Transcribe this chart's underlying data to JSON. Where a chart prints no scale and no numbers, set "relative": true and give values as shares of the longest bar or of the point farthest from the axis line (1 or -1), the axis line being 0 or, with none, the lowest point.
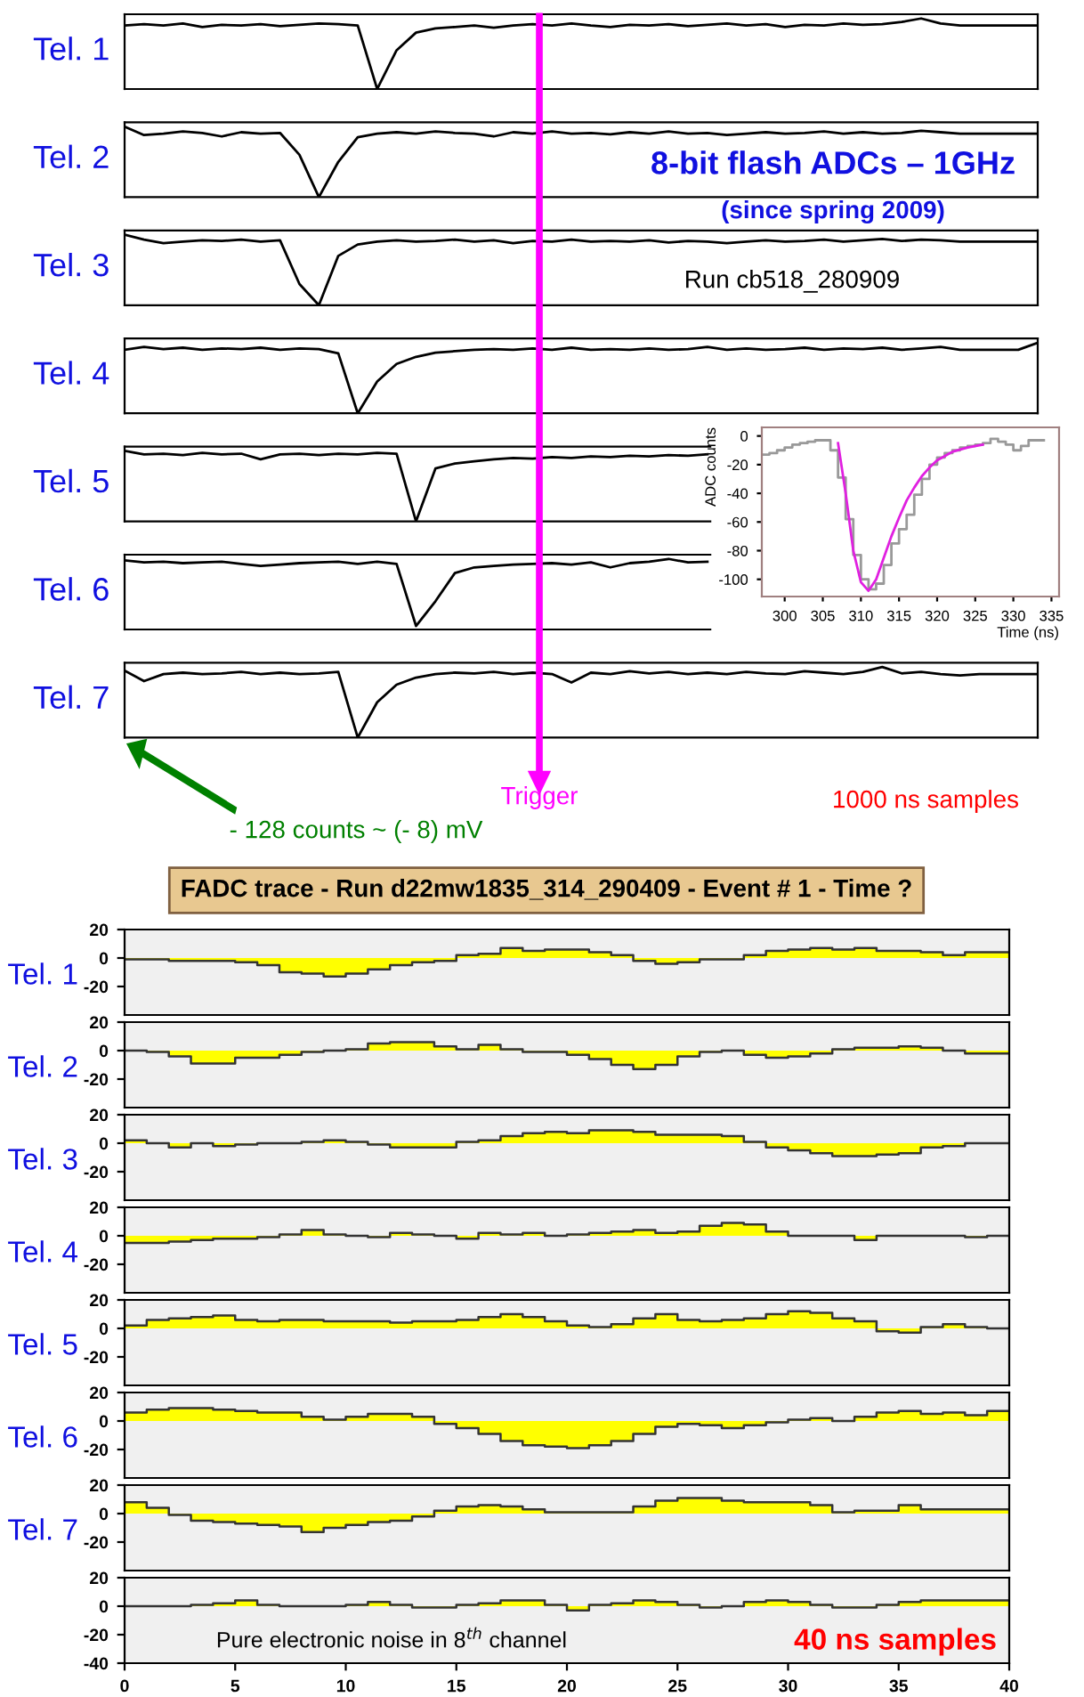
{
  "chart_data": [
    {
      "type": "line",
      "ylabel": "Tel. 1",
      "relative": true,
      "tick_labels": false,
      "annotations": [
        "8-bit flash ADCs – 1GHz",
        "(since spring 2009)"
      ],
      "categories": [
        null,
        null,
        null,
        null,
        null,
        null,
        null,
        null,
        null,
        null,
        null,
        null,
        null,
        null,
        null,
        null,
        null,
        null,
        null,
        null,
        null,
        null,
        null,
        null,
        null,
        null,
        null,
        null,
        null,
        null,
        null,
        null,
        null,
        null,
        null,
        null,
        null,
        null,
        null,
        null,
        null,
        null,
        null,
        null,
        null,
        null,
        null,
        null
      ],
      "series": [
        {
          "color": "#000000",
          "values": [
            0.9,
            0.92,
            0.9,
            0.93,
            0.88,
            0.91,
            0.9,
            0.92,
            0.89,
            0.91,
            0.93,
            0.92,
            0.9,
            0,
            0.55,
            0.8,
            0.86,
            0.88,
            0.9,
            0.87,
            0.9,
            0.92,
            0.9,
            0.93,
            0.9,
            0.88,
            0.91,
            0.9,
            0.92,
            0.89,
            0.91,
            0.93,
            0.9,
            0.92,
            0.88,
            0.91,
            0.9,
            0.93,
            0.91,
            0.92,
            0.95,
            1,
            0.93,
            0.9,
            0.9,
            0.9,
            0.9,
            0.9
          ]
        }
      ]
    },
    {
      "type": "line",
      "ylabel": "Tel. 2",
      "relative": true,
      "tick_labels": false,
      "categories": [
        null,
        null,
        null,
        null,
        null,
        null,
        null,
        null,
        null,
        null,
        null,
        null,
        null,
        null,
        null,
        null,
        null,
        null,
        null,
        null,
        null,
        null,
        null,
        null,
        null,
        null,
        null,
        null,
        null,
        null,
        null,
        null,
        null,
        null,
        null,
        null,
        null,
        null,
        null,
        null,
        null,
        null,
        null,
        null,
        null,
        null,
        null,
        null
      ],
      "series": [
        {
          "color": "#000000",
          "values": [
            1,
            0.88,
            0.9,
            0.93,
            0.91,
            0.86,
            0.92,
            0.9,
            0.91,
            0.6,
            0,
            0.5,
            0.85,
            0.9,
            0.92,
            0.9,
            0.93,
            0.91,
            0.9,
            0.86,
            0.92,
            0.9,
            0.93,
            0.9,
            0.91,
            0.89,
            0.92,
            0.9,
            0.93,
            0.9,
            0.91,
            0.88,
            0.9,
            0.92,
            0.9,
            0.91,
            0.93,
            0.9,
            0.92,
            0.9,
            0.91,
            0.94,
            0.92,
            0.9,
            0.9,
            0.9,
            0.9,
            0.9
          ]
        }
      ]
    },
    {
      "type": "line",
      "ylabel": "Tel. 3",
      "relative": true,
      "tick_labels": false,
      "annotations": [
        "Run cb518_280909"
      ],
      "categories": [
        null,
        null,
        null,
        null,
        null,
        null,
        null,
        null,
        null,
        null,
        null,
        null,
        null,
        null,
        null,
        null,
        null,
        null,
        null,
        null,
        null,
        null,
        null,
        null,
        null,
        null,
        null,
        null,
        null,
        null,
        null,
        null,
        null,
        null,
        null,
        null,
        null,
        null,
        null,
        null,
        null,
        null,
        null,
        null,
        null,
        null,
        null,
        null
      ],
      "series": [
        {
          "color": "#000000",
          "values": [
            1,
            0.93,
            0.88,
            0.9,
            0.92,
            0.91,
            0.93,
            0.9,
            0.92,
            0.3,
            0,
            0.7,
            0.86,
            0.9,
            0.92,
            0.9,
            0.91,
            0.93,
            0.9,
            0.92,
            0.88,
            0.91,
            0.9,
            0.93,
            0.9,
            0.91,
            0.9,
            0.92,
            0.89,
            0.91,
            0.9,
            0.88,
            0.9,
            0.92,
            0.9,
            0.91,
            0.93,
            0.9,
            0.92,
            0.94,
            0.91,
            0.93,
            0.92,
            0.9,
            0.9,
            0.9,
            0.9,
            0.9
          ]
        }
      ]
    },
    {
      "type": "line",
      "ylabel": "Tel. 4",
      "relative": true,
      "tick_labels": false,
      "categories": [
        null,
        null,
        null,
        null,
        null,
        null,
        null,
        null,
        null,
        null,
        null,
        null,
        null,
        null,
        null,
        null,
        null,
        null,
        null,
        null,
        null,
        null,
        null,
        null,
        null,
        null,
        null,
        null,
        null,
        null,
        null,
        null,
        null,
        null,
        null,
        null,
        null,
        null,
        null,
        null,
        null,
        null,
        null,
        null,
        null,
        null,
        null,
        null
      ],
      "series": [
        {
          "color": "#000000",
          "values": [
            0.9,
            0.94,
            0.91,
            0.93,
            0.9,
            0.92,
            0.91,
            0.93,
            0.9,
            0.92,
            0.91,
            0.85,
            0,
            0.45,
            0.7,
            0.8,
            0.86,
            0.88,
            0.9,
            0.91,
            0.9,
            0.92,
            0.9,
            0.93,
            0.9,
            0.91,
            0.9,
            0.92,
            0.9,
            0.91,
            0.94,
            0.9,
            0.92,
            0.9,
            0.91,
            0.93,
            0.9,
            0.92,
            0.91,
            0.93,
            0.9,
            0.92,
            0.94,
            0.9,
            0.9,
            0.9,
            0.9,
            1
          ]
        }
      ]
    },
    {
      "type": "line",
      "ylabel": "Tel. 5",
      "relative": true,
      "tick_labels": false,
      "categories": [
        null,
        null,
        null,
        null,
        null,
        null,
        null,
        null,
        null,
        null,
        null,
        null,
        null,
        null,
        null,
        null,
        null,
        null,
        null,
        null,
        null,
        null,
        null,
        null,
        null,
        null,
        null,
        null,
        null,
        null,
        null,
        null,
        null,
        null,
        null,
        null,
        null,
        null,
        null,
        null,
        null,
        null,
        null,
        null,
        null,
        null,
        null,
        null
      ],
      "series": [
        {
          "color": "#000000",
          "values": [
            1,
            0.95,
            0.96,
            0.94,
            0.97,
            0.95,
            0.96,
            0.88,
            0.95,
            0.96,
            0.94,
            0.96,
            0.95,
            0.97,
            0.96,
            0,
            0.75,
            0.82,
            0.85,
            0.88,
            0.9,
            0.89,
            0.91,
            0.9,
            0.92,
            0.91,
            0.93,
            0.92,
            0.94,
            0.93,
            0.95,
            null,
            null,
            null,
            null,
            null,
            null,
            null,
            null,
            null,
            null,
            null,
            null,
            null,
            null,
            null,
            null,
            null
          ]
        }
      ]
    },
    {
      "type": "line",
      "ylabel": "Tel. 6",
      "relative": true,
      "tick_labels": false,
      "categories": [
        null,
        null,
        null,
        null,
        null,
        null,
        null,
        null,
        null,
        null,
        null,
        null,
        null,
        null,
        null,
        null,
        null,
        null,
        null,
        null,
        null,
        null,
        null,
        null,
        null,
        null,
        null,
        null,
        null,
        null,
        null,
        null,
        null,
        null,
        null,
        null,
        null,
        null,
        null,
        null,
        null,
        null,
        null,
        null,
        null,
        null,
        null,
        null
      ],
      "series": [
        {
          "color": "#000000",
          "values": [
            0.98,
            0.95,
            0.96,
            0.94,
            0.95,
            0.96,
            0.93,
            0.9,
            0.92,
            0.94,
            0.95,
            0.96,
            0.93,
            0.96,
            0.93,
            0.05,
            0.4,
            0.8,
            0.88,
            0.9,
            0.92,
            0.93,
            0.94,
            0.92,
            0.95,
            0.88,
            0.94,
            0.96,
            1,
            0.95,
            0.96,
            null,
            null,
            null,
            null,
            null,
            null,
            null,
            null,
            null,
            null,
            null,
            null,
            null,
            null,
            null,
            null,
            null
          ]
        }
      ]
    },
    {
      "type": "line",
      "ylabel": "Tel. 7",
      "relative": true,
      "tick_labels": false,
      "annotations": [
        "Trigger",
        "1000 ns samples",
        "- 128 counts ~ (- 8) mV"
      ],
      "categories": [
        null,
        null,
        null,
        null,
        null,
        null,
        null,
        null,
        null,
        null,
        null,
        null,
        null,
        null,
        null,
        null,
        null,
        null,
        null,
        null,
        null,
        null,
        null,
        null,
        null,
        null,
        null,
        null,
        null,
        null,
        null,
        null,
        null,
        null,
        null,
        null,
        null,
        null,
        null,
        null,
        null,
        null,
        null,
        null,
        null,
        null,
        null,
        null
      ],
      "series": [
        {
          "color": "#000000",
          "values": [
            0.95,
            0.8,
            0.9,
            0.92,
            0.9,
            0.91,
            0.93,
            0.9,
            0.92,
            0.9,
            0.91,
            0.93,
            0,
            0.5,
            0.75,
            0.85,
            0.9,
            0.92,
            0.91,
            0.93,
            0.9,
            0.92,
            0.9,
            0.78,
            0.92,
            0.9,
            0.94,
            0.91,
            0.93,
            0.9,
            0.92,
            0.9,
            0.93,
            0.91,
            0.9,
            0.94,
            0.92,
            0.9,
            0.93,
            1,
            0.91,
            0.93,
            0.9,
            0.88,
            0.9,
            0.9,
            0.9,
            0.9
          ]
        }
      ]
    },
    {
      "type": "step",
      "xlabel": "Time (ns)",
      "ylabel": "ADC counts",
      "xlim": [
        297,
        336
      ],
      "ylim": [
        -112,
        6
      ],
      "xticks": [
        300,
        305,
        310,
        315,
        320,
        325,
        330,
        335
      ],
      "yticks": [
        -100,
        -80,
        -60,
        -40,
        -20,
        0
      ],
      "series": [
        {
          "type": "step",
          "color": "#999999",
          "x": [
            297,
            298,
            299,
            300,
            301,
            302,
            303,
            304,
            305,
            306,
            307,
            308,
            309,
            310,
            311,
            312,
            313,
            314,
            315,
            316,
            317,
            318,
            319,
            320,
            321,
            322,
            323,
            324,
            325,
            326,
            327,
            328,
            329,
            330,
            331,
            332,
            333,
            334
          ],
          "values": [
            -13,
            -12,
            -10,
            -8,
            -6,
            -5,
            -4,
            -3,
            -3,
            -10,
            -29,
            -58,
            -83,
            -100,
            -107,
            -103,
            -90,
            -75,
            -65,
            -55,
            -41,
            -30,
            -20,
            -15,
            -12,
            -10,
            -8,
            -7,
            -6,
            -5,
            -2,
            -4,
            -6,
            -10,
            -7,
            -3,
            -3,
            -3
          ]
        },
        {
          "type": "line",
          "color": "#e020e0",
          "x": [
            307,
            308,
            309,
            310,
            311,
            312,
            313,
            314,
            315,
            316,
            317,
            318,
            319,
            320,
            321,
            322,
            324,
            326
          ],
          "values": [
            -5,
            -40,
            -80,
            -102,
            -108,
            -100,
            -85,
            -70,
            -57,
            -45,
            -36,
            -28,
            -22,
            -17,
            -14,
            -11,
            -8,
            -6
          ]
        }
      ]
    },
    {
      "type": "area",
      "title": "FADC trace - Run d22mw1835_314_290409 - Event # 1 - Time ?",
      "ylabel": "Tel. 1",
      "tick_labels": "y",
      "xlim": [
        0,
        40
      ],
      "ylim": [
        -40,
        20
      ],
      "yticks": [
        -20,
        0,
        20
      ],
      "x": [
        0,
        1,
        2,
        3,
        4,
        5,
        6,
        7,
        8,
        9,
        10,
        11,
        12,
        13,
        14,
        15,
        16,
        17,
        18,
        19,
        20,
        21,
        22,
        23,
        24,
        25,
        26,
        27,
        28,
        29,
        30,
        31,
        32,
        33,
        34,
        35,
        36,
        37,
        38,
        39,
        40
      ],
      "series": [
        {
          "color": "#ffff00",
          "values": [
            -1,
            -1,
            -2,
            -2,
            -2,
            -3,
            -5,
            -10,
            -11,
            -13,
            -11,
            -8,
            -5,
            -3,
            -2,
            2,
            3,
            7,
            5,
            6,
            6,
            4,
            2,
            -2,
            -4,
            -3,
            -1,
            -1,
            2,
            5,
            6,
            7,
            6,
            7,
            5,
            5,
            4,
            2,
            4,
            4,
            4
          ]
        }
      ]
    },
    {
      "type": "area",
      "ylabel": "Tel. 2",
      "tick_labels": "y",
      "xlim": [
        0,
        40
      ],
      "ylim": [
        -40,
        20
      ],
      "yticks": [
        -20,
        0,
        20
      ],
      "x": [
        0,
        1,
        2,
        3,
        4,
        5,
        6,
        7,
        8,
        9,
        10,
        11,
        12,
        13,
        14,
        15,
        16,
        17,
        18,
        19,
        20,
        21,
        22,
        23,
        24,
        25,
        26,
        27,
        28,
        29,
        30,
        31,
        32,
        33,
        34,
        35,
        36,
        37,
        38,
        39,
        40
      ],
      "series": [
        {
          "color": "#ffff00",
          "values": [
            0,
            -1,
            -4,
            -9,
            -9,
            -5,
            -5,
            -3,
            -1,
            0,
            1,
            5,
            6,
            6,
            3,
            1,
            4,
            1,
            -1,
            -1,
            -3,
            -6,
            -10,
            -13,
            -10,
            -4,
            -1,
            0,
            -3,
            -5,
            -4,
            -2,
            1,
            2,
            2,
            3,
            2,
            0,
            -2,
            -2,
            -2
          ]
        }
      ]
    },
    {
      "type": "area",
      "ylabel": "Tel. 3",
      "tick_labels": "y",
      "xlim": [
        0,
        40
      ],
      "ylim": [
        -40,
        20
      ],
      "yticks": [
        -20,
        0,
        20
      ],
      "x": [
        0,
        1,
        2,
        3,
        4,
        5,
        6,
        7,
        8,
        9,
        10,
        11,
        12,
        13,
        14,
        15,
        16,
        17,
        18,
        19,
        20,
        21,
        22,
        23,
        24,
        25,
        26,
        27,
        28,
        29,
        30,
        31,
        32,
        33,
        34,
        35,
        36,
        37,
        38,
        39,
        40
      ],
      "series": [
        {
          "color": "#ffff00",
          "values": [
            2,
            0,
            -3,
            0,
            -2,
            -1,
            0,
            0,
            1,
            2,
            1,
            -1,
            -3,
            -3,
            -3,
            1,
            2,
            5,
            7,
            8,
            7,
            9,
            9,
            8,
            6,
            6,
            6,
            5,
            1,
            -3,
            -5,
            -7,
            -9,
            -9,
            -8,
            -7,
            -3,
            -2,
            0,
            0,
            0
          ]
        }
      ]
    },
    {
      "type": "area",
      "ylabel": "Tel. 4",
      "tick_labels": "y",
      "xlim": [
        0,
        40
      ],
      "ylim": [
        -40,
        20
      ],
      "yticks": [
        -20,
        0,
        20
      ],
      "x": [
        0,
        1,
        2,
        3,
        4,
        5,
        6,
        7,
        8,
        9,
        10,
        11,
        12,
        13,
        14,
        15,
        16,
        17,
        18,
        19,
        20,
        21,
        22,
        23,
        24,
        25,
        26,
        27,
        28,
        29,
        30,
        31,
        32,
        33,
        34,
        35,
        36,
        37,
        38,
        39,
        40
      ],
      "series": [
        {
          "color": "#ffff00",
          "values": [
            -5,
            -5,
            -4,
            -3,
            -2,
            -2,
            -1,
            1,
            4,
            1,
            0,
            -1,
            2,
            1,
            0,
            -2,
            2,
            1,
            2,
            0,
            1,
            2,
            3,
            4,
            2,
            3,
            7,
            9,
            8,
            3,
            0,
            0,
            0,
            -3,
            0,
            0,
            0,
            0,
            -1,
            0,
            0
          ]
        }
      ]
    },
    {
      "type": "area",
      "ylabel": "Tel. 5",
      "tick_labels": "y",
      "xlim": [
        0,
        40
      ],
      "ylim": [
        -40,
        20
      ],
      "yticks": [
        -20,
        0,
        20
      ],
      "x": [
        0,
        1,
        2,
        3,
        4,
        5,
        6,
        7,
        8,
        9,
        10,
        11,
        12,
        13,
        14,
        15,
        16,
        17,
        18,
        19,
        20,
        21,
        22,
        23,
        24,
        25,
        26,
        27,
        28,
        29,
        30,
        31,
        32,
        33,
        34,
        35,
        36,
        37,
        38,
        39,
        40
      ],
      "series": [
        {
          "color": "#ffff00",
          "values": [
            2,
            6,
            7,
            8,
            9,
            6,
            5,
            6,
            6,
            5,
            5,
            5,
            4,
            5,
            5,
            6,
            8,
            10,
            8,
            5,
            2,
            1,
            3,
            7,
            10,
            6,
            5,
            6,
            7,
            10,
            12,
            11,
            7,
            5,
            -2,
            -3,
            1,
            3,
            1,
            0,
            0
          ]
        }
      ]
    },
    {
      "type": "area",
      "ylabel": "Tel. 6",
      "tick_labels": "y",
      "xlim": [
        0,
        40
      ],
      "ylim": [
        -40,
        20
      ],
      "yticks": [
        -20,
        0,
        20
      ],
      "x": [
        0,
        1,
        2,
        3,
        4,
        5,
        6,
        7,
        8,
        9,
        10,
        11,
        12,
        13,
        14,
        15,
        16,
        17,
        18,
        19,
        20,
        21,
        22,
        23,
        24,
        25,
        26,
        27,
        28,
        29,
        30,
        31,
        32,
        33,
        34,
        35,
        36,
        37,
        38,
        39,
        40
      ],
      "series": [
        {
          "color": "#ffff00",
          "values": [
            6,
            8,
            9,
            9,
            8,
            7,
            6,
            6,
            3,
            1,
            3,
            5,
            5,
            3,
            -2,
            -5,
            -9,
            -14,
            -17,
            -18,
            -19,
            -17,
            -14,
            -9,
            -4,
            -2,
            -3,
            -5,
            -3,
            -1,
            1,
            2,
            0,
            3,
            6,
            7,
            5,
            6,
            4,
            7,
            7
          ]
        }
      ]
    },
    {
      "type": "area",
      "ylabel": "Tel. 7",
      "tick_labels": "y",
      "xlim": [
        0,
        40
      ],
      "ylim": [
        -40,
        20
      ],
      "yticks": [
        -20,
        0,
        20
      ],
      "x": [
        0,
        1,
        2,
        3,
        4,
        5,
        6,
        7,
        8,
        9,
        10,
        11,
        12,
        13,
        14,
        15,
        16,
        17,
        18,
        19,
        20,
        21,
        22,
        23,
        24,
        25,
        26,
        27,
        28,
        29,
        30,
        31,
        32,
        33,
        34,
        35,
        36,
        37,
        38,
        39,
        40
      ],
      "series": [
        {
          "color": "#ffff00",
          "values": [
            8,
            4,
            -1,
            -5,
            -6,
            -7,
            -8,
            -9,
            -13,
            -10,
            -8,
            -6,
            -5,
            -2,
            2,
            5,
            6,
            5,
            3,
            1,
            1,
            1,
            1,
            5,
            9,
            11,
            11,
            9,
            8,
            8,
            8,
            6,
            1,
            2,
            2,
            6,
            3,
            3,
            3,
            3,
            3
          ]
        }
      ]
    },
    {
      "type": "area",
      "annotations": [
        "Pure electronic noise in 8$^{th}$ channel",
        "40 ns samples"
      ],
      "xlim": [
        0,
        40
      ],
      "ylim": [
        -40,
        20
      ],
      "yticks": [
        -40,
        -20,
        0,
        20
      ],
      "xticks": [
        0,
        5,
        10,
        15,
        20,
        25,
        30,
        35,
        40
      ],
      "x": [
        0,
        1,
        2,
        3,
        4,
        5,
        6,
        7,
        8,
        9,
        10,
        11,
        12,
        13,
        14,
        15,
        16,
        17,
        18,
        19,
        20,
        21,
        22,
        23,
        24,
        25,
        26,
        27,
        28,
        29,
        30,
        31,
        32,
        33,
        34,
        35,
        36,
        37,
        38,
        39,
        40
      ],
      "series": [
        {
          "color": "#ffff00",
          "values": [
            0,
            0,
            0,
            1,
            2,
            4,
            1,
            0,
            0,
            0,
            1,
            3,
            1,
            -1,
            -1,
            1,
            2,
            4,
            4,
            1,
            -3,
            1,
            2,
            4,
            3,
            1,
            -1,
            0,
            3,
            4,
            3,
            1,
            -1,
            -1,
            1,
            3,
            4,
            4,
            4,
            4,
            4
          ]
        }
      ]
    }
  ]
}
